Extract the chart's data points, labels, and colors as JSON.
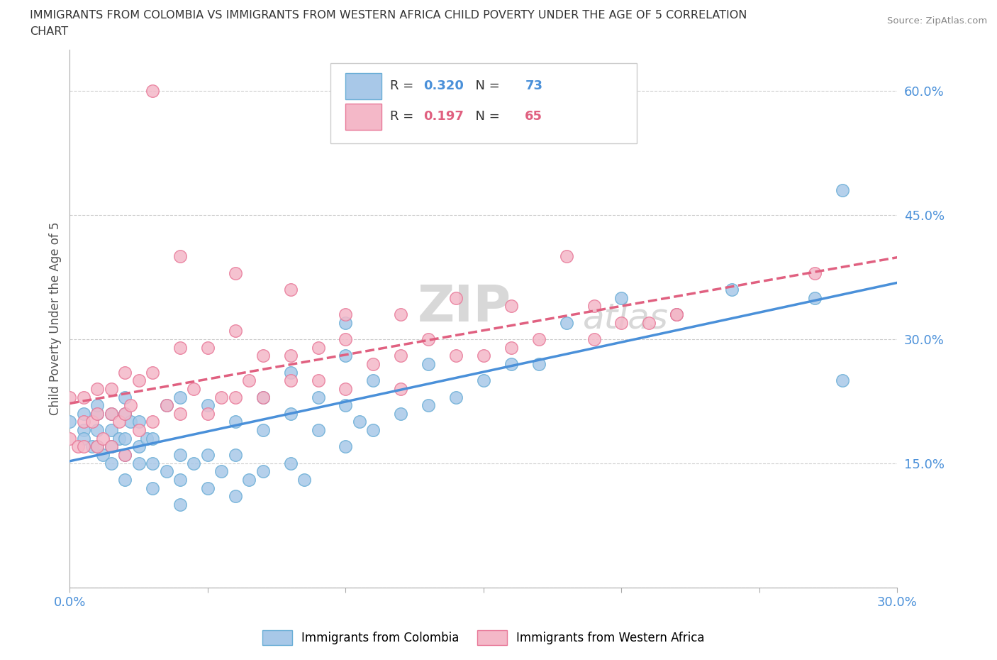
{
  "title_line1": "IMMIGRANTS FROM COLOMBIA VS IMMIGRANTS FROM WESTERN AFRICA CHILD POVERTY UNDER THE AGE OF 5 CORRELATION",
  "title_line2": "CHART",
  "source_text": "Source: ZipAtlas.com",
  "ylabel": "Child Poverty Under the Age of 5",
  "xlim": [
    0.0,
    0.3
  ],
  "ylim": [
    0.0,
    0.65
  ],
  "x_ticks": [
    0.0,
    0.05,
    0.1,
    0.15,
    0.2,
    0.25,
    0.3
  ],
  "x_tick_labels": [
    "0.0%",
    "",
    "",
    "",
    "",
    "",
    "30.0%"
  ],
  "y_ticks": [
    0.0,
    0.15,
    0.3,
    0.45,
    0.6
  ],
  "y_tick_labels": [
    "",
    "15.0%",
    "30.0%",
    "45.0%",
    "60.0%"
  ],
  "colombia_color": "#a8c8e8",
  "colombia_edge": "#6aaed6",
  "western_africa_color": "#f4b8c8",
  "western_africa_edge": "#e87898",
  "colombia_R": 0.32,
  "colombia_N": 73,
  "western_africa_R": 0.197,
  "western_africa_N": 65,
  "colombia_line_color": "#4a90d9",
  "western_africa_line_color": "#e06080",
  "grid_color": "#cccccc",
  "watermark_zip": "ZIP",
  "watermark_atlas": "atlas",
  "colombia_points_x": [
    0.0,
    0.005,
    0.005,
    0.005,
    0.008,
    0.01,
    0.01,
    0.01,
    0.01,
    0.012,
    0.015,
    0.015,
    0.015,
    0.015,
    0.018,
    0.02,
    0.02,
    0.02,
    0.02,
    0.02,
    0.022,
    0.025,
    0.025,
    0.025,
    0.028,
    0.03,
    0.03,
    0.03,
    0.035,
    0.035,
    0.04,
    0.04,
    0.04,
    0.04,
    0.045,
    0.05,
    0.05,
    0.05,
    0.055,
    0.06,
    0.06,
    0.06,
    0.065,
    0.07,
    0.07,
    0.07,
    0.08,
    0.08,
    0.08,
    0.085,
    0.09,
    0.09,
    0.1,
    0.1,
    0.1,
    0.105,
    0.11,
    0.11,
    0.12,
    0.13,
    0.13,
    0.14,
    0.15,
    0.16,
    0.17,
    0.18,
    0.2,
    0.22,
    0.24,
    0.27,
    0.28,
    0.28,
    0.1
  ],
  "colombia_points_y": [
    0.2,
    0.19,
    0.21,
    0.18,
    0.17,
    0.17,
    0.19,
    0.21,
    0.22,
    0.16,
    0.15,
    0.17,
    0.19,
    0.21,
    0.18,
    0.13,
    0.16,
    0.18,
    0.21,
    0.23,
    0.2,
    0.15,
    0.17,
    0.2,
    0.18,
    0.12,
    0.15,
    0.18,
    0.14,
    0.22,
    0.1,
    0.13,
    0.16,
    0.23,
    0.15,
    0.12,
    0.16,
    0.22,
    0.14,
    0.11,
    0.16,
    0.2,
    0.13,
    0.14,
    0.19,
    0.23,
    0.15,
    0.21,
    0.26,
    0.13,
    0.19,
    0.23,
    0.17,
    0.22,
    0.28,
    0.2,
    0.19,
    0.25,
    0.21,
    0.22,
    0.27,
    0.23,
    0.25,
    0.27,
    0.27,
    0.32,
    0.35,
    0.33,
    0.36,
    0.35,
    0.25,
    0.48,
    0.32
  ],
  "western_africa_points_x": [
    0.0,
    0.0,
    0.003,
    0.005,
    0.005,
    0.005,
    0.008,
    0.01,
    0.01,
    0.01,
    0.012,
    0.015,
    0.015,
    0.015,
    0.018,
    0.02,
    0.02,
    0.02,
    0.022,
    0.025,
    0.025,
    0.03,
    0.03,
    0.035,
    0.04,
    0.04,
    0.045,
    0.05,
    0.05,
    0.055,
    0.06,
    0.06,
    0.065,
    0.07,
    0.07,
    0.08,
    0.08,
    0.09,
    0.09,
    0.1,
    0.1,
    0.11,
    0.12,
    0.12,
    0.13,
    0.14,
    0.15,
    0.16,
    0.17,
    0.18,
    0.19,
    0.2,
    0.21,
    0.22,
    0.03,
    0.04,
    0.06,
    0.08,
    0.1,
    0.12,
    0.14,
    0.16,
    0.19,
    0.22,
    0.27
  ],
  "western_africa_points_y": [
    0.18,
    0.23,
    0.17,
    0.17,
    0.2,
    0.23,
    0.2,
    0.17,
    0.21,
    0.24,
    0.18,
    0.17,
    0.21,
    0.24,
    0.2,
    0.16,
    0.21,
    0.26,
    0.22,
    0.19,
    0.25,
    0.2,
    0.26,
    0.22,
    0.21,
    0.29,
    0.24,
    0.21,
    0.29,
    0.23,
    0.23,
    0.31,
    0.25,
    0.23,
    0.28,
    0.25,
    0.28,
    0.25,
    0.29,
    0.24,
    0.3,
    0.27,
    0.24,
    0.28,
    0.3,
    0.28,
    0.28,
    0.29,
    0.3,
    0.4,
    0.3,
    0.32,
    0.32,
    0.33,
    0.6,
    0.4,
    0.38,
    0.36,
    0.33,
    0.33,
    0.35,
    0.34,
    0.34,
    0.33,
    0.38
  ]
}
